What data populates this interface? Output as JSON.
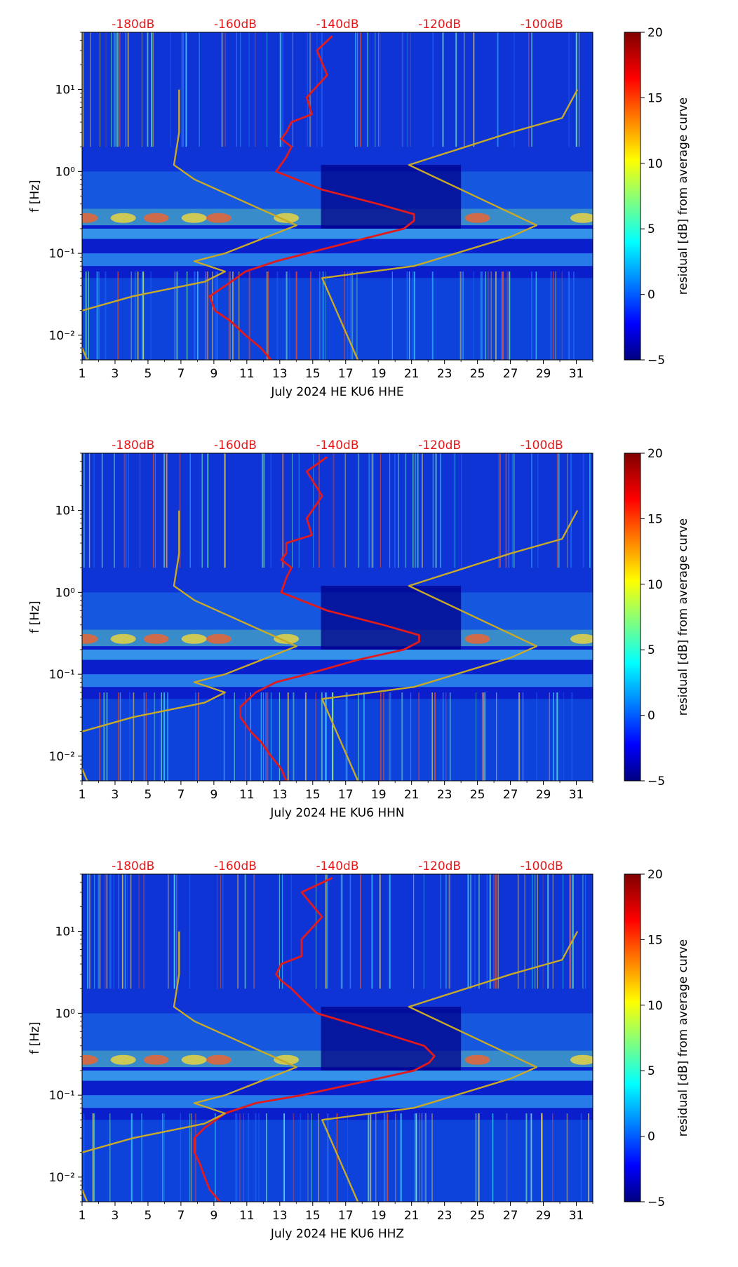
{
  "figure": {
    "panels": [
      {
        "channel": "HHE",
        "xlabel": "July 2024 HE KU6  HHE"
      },
      {
        "channel": "HHN",
        "xlabel": "July 2024 HE KU6  HHN"
      },
      {
        "channel": "HHZ",
        "xlabel": "July 2024 HE KU6  HHZ"
      }
    ]
  },
  "chart_data": [
    {
      "type": "heatmap",
      "title": "",
      "xlabel": "July 2024 HE KU6  HHE",
      "ylabel": "f [Hz]",
      "x_ticks": [
        "1",
        "3",
        "5",
        "7",
        "9",
        "11",
        "13",
        "15",
        "17",
        "19",
        "21",
        "23",
        "25",
        "27",
        "29",
        "31"
      ],
      "xlim": [
        1,
        32
      ],
      "y_scale": "log",
      "ylim": [
        0.005,
        50
      ],
      "y_ticks": [
        "10⁻²",
        "10⁻¹",
        "10⁰",
        "10¹"
      ],
      "top_axis_labels": [
        "-180dB",
        "-160dB",
        "-140dB",
        "-120dB",
        "-100dB"
      ],
      "colorbar": {
        "label": "residual [dB] from average curve",
        "range": [
          -5,
          20
        ],
        "ticks": [
          "−5",
          "0",
          "5",
          "10",
          "15",
          "20"
        ],
        "colormap": "jet"
      },
      "series": [
        {
          "name": "average PSD (red)",
          "color": "#e31a1c",
          "x_db": [
            -141,
            -144,
            -142,
            -146,
            -145,
            -149,
            -150,
            -151,
            -149,
            -150,
            -152,
            -143,
            -132,
            -125,
            -125,
            -127,
            -135,
            -146,
            -152,
            -158,
            -162,
            -165,
            -164,
            -161,
            -158,
            -155,
            -153
          ],
          "freq_hz": [
            45,
            30,
            15,
            8,
            5,
            4,
            3,
            2.5,
            2,
            1.5,
            1,
            0.6,
            0.4,
            0.3,
            0.25,
            0.2,
            0.15,
            0.1,
            0.08,
            0.06,
            0.04,
            0.03,
            0.02,
            0.015,
            0.01,
            0.007,
            0.005
          ]
        },
        {
          "name": "noise model low (olive)",
          "color": "#c8aa28",
          "x_db": [
            -171,
            -171,
            -172,
            -168,
            -148,
            -162,
            -168,
            -162,
            -166,
            -180,
            -190,
            -192,
            -192,
            -190,
            -189
          ],
          "freq_hz": [
            10,
            3,
            1.2,
            0.8,
            0.22,
            0.1,
            0.08,
            0.06,
            0.045,
            0.03,
            0.02,
            0.013,
            0.01,
            0.007,
            0.005
          ]
        },
        {
          "name": "noise model high (olive)",
          "color": "#c8aa28",
          "x_db": [
            -93,
            -96,
            -106,
            -126,
            -101,
            -106,
            -125,
            -143,
            -136
          ],
          "freq_hz": [
            10,
            4.5,
            3,
            1.2,
            0.22,
            0.16,
            0.07,
            0.05,
            0.005
          ]
        }
      ]
    },
    {
      "type": "heatmap",
      "title": "",
      "xlabel": "July 2024 HE KU6  HHN",
      "ylabel": "f [Hz]",
      "x_ticks": [
        "1",
        "3",
        "5",
        "7",
        "9",
        "11",
        "13",
        "15",
        "17",
        "19",
        "21",
        "23",
        "25",
        "27",
        "29",
        "31"
      ],
      "xlim": [
        1,
        32
      ],
      "y_scale": "log",
      "ylim": [
        0.005,
        50
      ],
      "y_ticks": [
        "10⁻²",
        "10⁻¹",
        "10⁰",
        "10¹"
      ],
      "top_axis_labels": [
        "-180dB",
        "-160dB",
        "-140dB",
        "-120dB",
        "-100dB"
      ],
      "colorbar": {
        "label": "residual [dB] from average curve",
        "range": [
          -5,
          20
        ],
        "ticks": [
          "−5",
          "0",
          "5",
          "10",
          "15",
          "20"
        ],
        "colormap": "jet"
      },
      "series": [
        {
          "name": "average PSD (red)",
          "color": "#e31a1c",
          "x_db": [
            -142,
            -146,
            -143,
            -146,
            -145,
            -150,
            -150,
            -151,
            -149,
            -150,
            -151,
            -142,
            -131,
            -124,
            -124,
            -127,
            -136,
            -146,
            -152,
            -156,
            -159,
            -159,
            -157,
            -155,
            -153,
            -151,
            -150
          ],
          "freq_hz": [
            45,
            30,
            15,
            8,
            5,
            4,
            3,
            2.5,
            2,
            1.5,
            1,
            0.6,
            0.4,
            0.3,
            0.25,
            0.2,
            0.15,
            0.1,
            0.08,
            0.06,
            0.04,
            0.03,
            0.02,
            0.015,
            0.01,
            0.007,
            0.005
          ]
        },
        {
          "name": "noise model low (olive)",
          "color": "#c8aa28",
          "x_db": [
            -171,
            -171,
            -172,
            -168,
            -148,
            -162,
            -168,
            -162,
            -166,
            -180,
            -190,
            -192,
            -192,
            -190,
            -189
          ],
          "freq_hz": [
            10,
            3,
            1.2,
            0.8,
            0.22,
            0.1,
            0.08,
            0.06,
            0.045,
            0.03,
            0.02,
            0.013,
            0.01,
            0.007,
            0.005
          ]
        },
        {
          "name": "noise model high (olive)",
          "color": "#c8aa28",
          "x_db": [
            -93,
            -96,
            -106,
            -126,
            -101,
            -106,
            -125,
            -143,
            -136
          ],
          "freq_hz": [
            10,
            4.5,
            3,
            1.2,
            0.22,
            0.16,
            0.07,
            0.05,
            0.005
          ]
        }
      ]
    },
    {
      "type": "heatmap",
      "title": "",
      "xlabel": "July 2024 HE KU6  HHZ",
      "ylabel": "f [Hz]",
      "x_ticks": [
        "1",
        "3",
        "5",
        "7",
        "9",
        "11",
        "13",
        "15",
        "17",
        "19",
        "21",
        "23",
        "25",
        "27",
        "29",
        "31"
      ],
      "xlim": [
        1,
        32
      ],
      "y_scale": "log",
      "ylim": [
        0.005,
        50
      ],
      "y_ticks": [
        "10⁻²",
        "10⁻¹",
        "10⁰",
        "10¹"
      ],
      "top_axis_labels": [
        "-180dB",
        "-160dB",
        "-140dB",
        "-120dB",
        "-100dB"
      ],
      "colorbar": {
        "label": "residual [dB] from average curve",
        "range": [
          -5,
          20
        ],
        "ticks": [
          "−5",
          "0",
          "5",
          "10",
          "15",
          "20"
        ],
        "colormap": "jet"
      },
      "series": [
        {
          "name": "average PSD (red)",
          "color": "#e31a1c",
          "x_db": [
            -141,
            -147,
            -143,
            -147,
            -147,
            -151,
            -152,
            -151,
            -149,
            -147,
            -144,
            -132,
            -123,
            -121,
            -122,
            -125,
            -134,
            -147,
            -156,
            -162,
            -166,
            -168,
            -168,
            -167,
            -166,
            -165,
            -163
          ],
          "freq_hz": [
            45,
            30,
            15,
            8,
            5,
            4,
            3,
            2.5,
            2,
            1.5,
            1,
            0.6,
            0.4,
            0.3,
            0.25,
            0.2,
            0.15,
            0.1,
            0.08,
            0.06,
            0.04,
            0.03,
            0.02,
            0.015,
            0.01,
            0.007,
            0.005
          ]
        },
        {
          "name": "noise model low (olive)",
          "color": "#c8aa28",
          "x_db": [
            -171,
            -171,
            -172,
            -168,
            -148,
            -162,
            -168,
            -162,
            -166,
            -180,
            -190,
            -192,
            -192,
            -190,
            -189
          ],
          "freq_hz": [
            10,
            3,
            1.2,
            0.8,
            0.22,
            0.1,
            0.08,
            0.06,
            0.045,
            0.03,
            0.02,
            0.013,
            0.01,
            0.007,
            0.005
          ]
        },
        {
          "name": "noise model high (olive)",
          "color": "#c8aa28",
          "x_db": [
            -93,
            -96,
            -106,
            -126,
            -101,
            -106,
            -125,
            -143,
            -136
          ],
          "freq_hz": [
            10,
            4.5,
            3,
            1.2,
            0.22,
            0.16,
            0.07,
            0.05,
            0.005
          ]
        }
      ]
    }
  ]
}
